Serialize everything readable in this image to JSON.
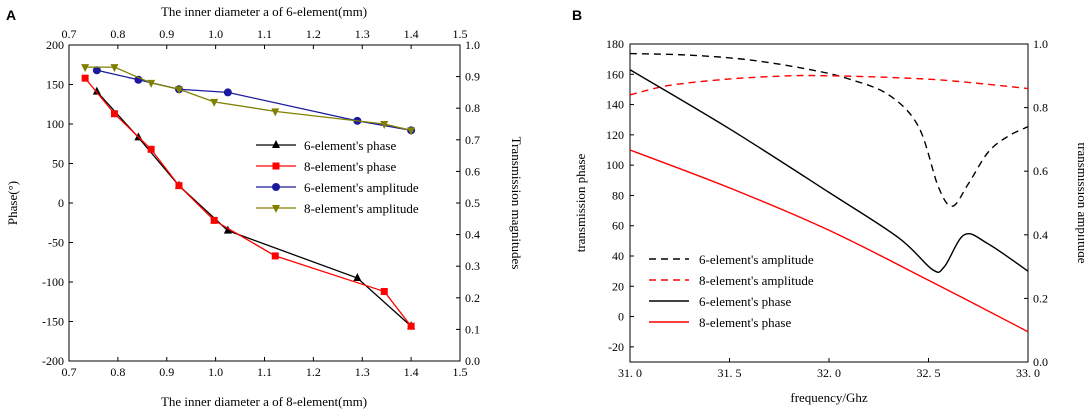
{
  "chart_data": [
    {
      "panel": "A",
      "type": "line",
      "top_xlabel": "The inner diameter a of 6-element(mm)",
      "bottom_xlabel": "The inner diameter a of 8-element(mm)",
      "ylabel_left": "Phase(°)",
      "ylabel_right": "Transmission magnitudes",
      "xlim": [
        0.7,
        1.5
      ],
      "xticks": [
        "0.7",
        "0.8",
        "0.9",
        "1.0",
        "1.1",
        "1.2",
        "1.3",
        "1.4",
        "1.5"
      ],
      "ylim_left": [
        -200,
        200
      ],
      "yticks_left": [
        "200",
        "150",
        "100",
        "50",
        "0",
        "-50",
        "-100",
        "-150",
        "-200"
      ],
      "ylim_right": [
        0,
        1.0
      ],
      "yticks_right": [
        "1.0",
        "0.9",
        "0.8",
        "0.7",
        "0.6",
        "0.5",
        "0.4",
        "0.3",
        "0.2",
        "0.1",
        "0.0"
      ],
      "series": [
        {
          "name": "6-element's phase",
          "axis": "left",
          "color": "#000000",
          "marker": "triangle-up",
          "x": [
            0.757,
            0.842,
            0.925,
            1.025,
            1.29,
            1.4
          ],
          "y": [
            141,
            83,
            22,
            -35,
            -95,
            -156
          ]
        },
        {
          "name": "8-element's phase",
          "axis": "left",
          "color": "#ff0000",
          "marker": "square",
          "x": [
            0.733,
            0.793,
            0.868,
            0.925,
            0.997,
            1.122,
            1.345,
            1.4
          ],
          "y": [
            158,
            113,
            68,
            22,
            -22,
            -67,
            -112,
            -156
          ]
        },
        {
          "name": "6-element's amplitude",
          "axis": "right",
          "color": "#1a1a9e",
          "marker": "circle",
          "x": [
            0.757,
            0.842,
            0.925,
            1.025,
            1.29,
            1.4
          ],
          "y": [
            0.92,
            0.89,
            0.86,
            0.85,
            0.76,
            0.73
          ]
        },
        {
          "name": "8-element's amplitude",
          "axis": "right",
          "color": "#808000",
          "marker": "triangle-down",
          "x": [
            0.733,
            0.793,
            0.868,
            0.925,
            0.997,
            1.122,
            1.345,
            1.4
          ],
          "y": [
            0.93,
            0.93,
            0.88,
            0.86,
            0.82,
            0.79,
            0.75,
            0.73
          ]
        }
      ]
    },
    {
      "panel": "B",
      "type": "line",
      "xlabel": "frequency/Ghz",
      "ylabel_left": "transmission phase",
      "ylabel_right": "transmission amplitude",
      "xlim": [
        31.0,
        33.0
      ],
      "xticks": [
        "31. 0",
        "31. 5",
        "32. 0",
        "32. 5",
        "33. 0"
      ],
      "ylim_left": [
        -30,
        180
      ],
      "yticks_left": [
        "180",
        "160",
        "140",
        "120",
        "100",
        "80",
        "60",
        "40",
        "20",
        "0",
        "-20"
      ],
      "ylim_right": [
        0,
        1.0
      ],
      "yticks_right": [
        "1.0",
        "0.8",
        "0.6",
        "0.4",
        "0.2",
        "0.0"
      ],
      "series": [
        {
          "name": "6-element's amplitude",
          "axis": "right",
          "color": "#000000",
          "dash": "dashed",
          "x": [
            31.0,
            31.3,
            31.6,
            31.9,
            32.1,
            32.3,
            32.45,
            32.55,
            32.62,
            32.7,
            32.8,
            32.9,
            33.0
          ],
          "y": [
            0.97,
            0.965,
            0.95,
            0.92,
            0.89,
            0.84,
            0.74,
            0.55,
            0.49,
            0.56,
            0.66,
            0.71,
            0.74
          ]
        },
        {
          "name": "8-element's amplitude",
          "axis": "right",
          "color": "#ff0000",
          "dash": "dashed",
          "x": [
            31.0,
            31.2,
            31.5,
            31.8,
            32.0,
            32.3,
            32.6,
            33.0
          ],
          "y": [
            0.84,
            0.87,
            0.89,
            0.9,
            0.9,
            0.895,
            0.885,
            0.86
          ]
        },
        {
          "name": "6-element's phase",
          "axis": "left",
          "color": "#000000",
          "dash": "solid",
          "x": [
            31.0,
            31.5,
            32.0,
            32.35,
            32.52,
            32.58,
            32.68,
            32.8,
            33.0
          ],
          "y": [
            163,
            124,
            82,
            52,
            31,
            33,
            54,
            48,
            30
          ]
        },
        {
          "name": "8-element's phase",
          "axis": "left",
          "color": "#ff0000",
          "dash": "solid",
          "x": [
            31.0,
            31.5,
            32.0,
            32.5,
            33.0
          ],
          "y": [
            110,
            85,
            57,
            24,
            -10
          ]
        }
      ]
    }
  ],
  "panels": {
    "A": {
      "letter": "A"
    },
    "B": {
      "letter": "B"
    }
  }
}
